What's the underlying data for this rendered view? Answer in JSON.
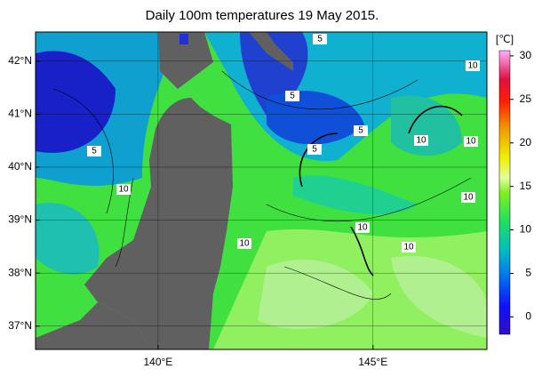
{
  "title": "Daily 100m temperatures 19 May 2015.",
  "map": {
    "xlim": [
      137.15,
      147.65
    ],
    "ylim": [
      36.56,
      42.55
    ],
    "xticks": [
      {
        "value": 140,
        "label": "140°E"
      },
      {
        "value": 145,
        "label": "145°E"
      }
    ],
    "yticks": [
      {
        "value": 37,
        "label": "37°N"
      },
      {
        "value": 38,
        "label": "38°N"
      },
      {
        "value": 39,
        "label": "39°N"
      },
      {
        "value": 40,
        "label": "40°N"
      },
      {
        "value": 41,
        "label": "41°N"
      },
      {
        "value": 42,
        "label": "42°N"
      }
    ],
    "contour_labels": [
      5,
      5,
      5,
      5,
      5,
      10,
      10,
      10,
      10,
      10,
      10,
      10,
      10
    ]
  },
  "colorbar": {
    "label": "[℃]",
    "lim": [
      -2,
      30.6
    ],
    "ticks": [
      0,
      5,
      10,
      15,
      20,
      25,
      30
    ]
  }
}
